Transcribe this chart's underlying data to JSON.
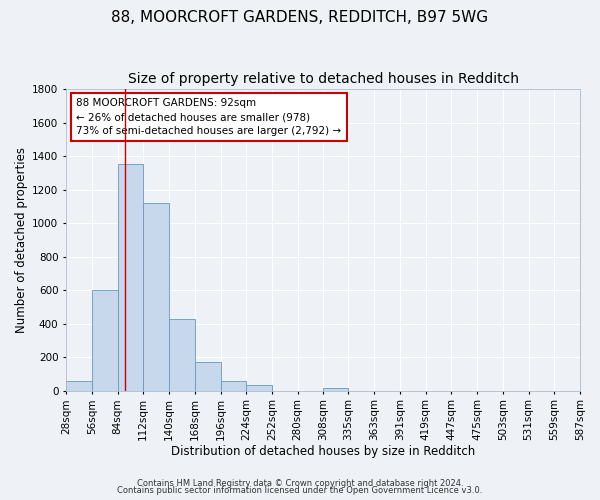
{
  "title": "88, MOORCROFT GARDENS, REDDITCH, B97 5WG",
  "subtitle": "Size of property relative to detached houses in Redditch",
  "xlabel": "Distribution of detached houses by size in Redditch",
  "ylabel": "Number of detached properties",
  "footer_line1": "Contains HM Land Registry data © Crown copyright and database right 2024.",
  "footer_line2": "Contains public sector information licensed under the Open Government Licence v3.0.",
  "bin_edges": [
    28,
    56,
    84,
    112,
    140,
    168,
    196,
    224,
    252,
    280,
    308,
    335,
    363,
    391,
    419,
    447,
    475,
    503,
    531,
    559,
    587
  ],
  "bin_counts": [
    60,
    600,
    1350,
    1120,
    430,
    170,
    60,
    35,
    0,
    0,
    15,
    0,
    0,
    0,
    0,
    0,
    0,
    0,
    0,
    0
  ],
  "bar_color": "#c8d8ec",
  "bar_edge_color": "#6699bb",
  "vline_x": 92,
  "vline_color": "#cc0000",
  "annotation_text": "88 MOORCROFT GARDENS: 92sqm\n← 26% of detached houses are smaller (978)\n73% of semi-detached houses are larger (2,792) →",
  "annotation_box_color": "#ffffff",
  "annotation_box_edge_color": "#cc0000",
  "ylim": [
    0,
    1800
  ],
  "yticks": [
    0,
    200,
    400,
    600,
    800,
    1000,
    1200,
    1400,
    1600,
    1800
  ],
  "background_color": "#eef2f7",
  "grid_color": "#ffffff",
  "title_fontsize": 11,
  "subtitle_fontsize": 10,
  "axis_label_fontsize": 8.5,
  "tick_label_fontsize": 7.5,
  "footer_fontsize": 6.0
}
